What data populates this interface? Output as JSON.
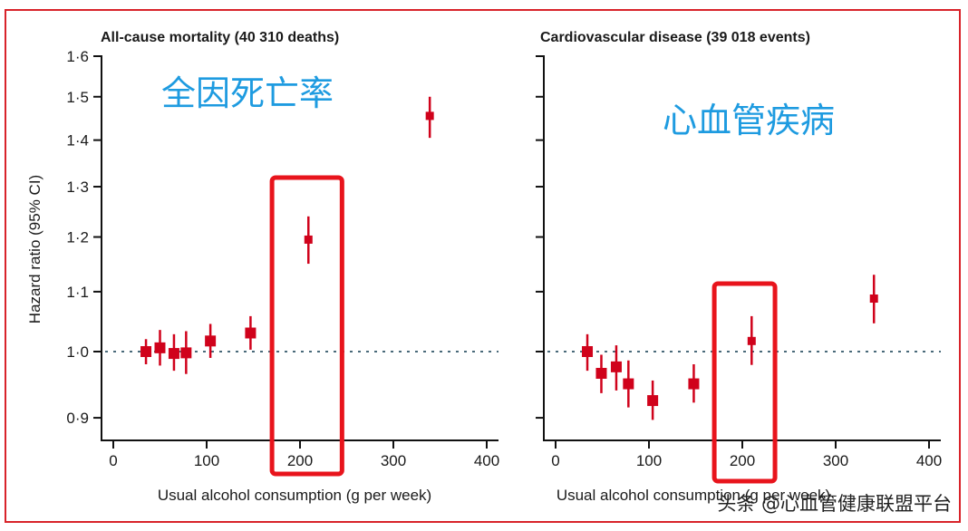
{
  "chart_data": [
    {
      "type": "scatter",
      "subtype": "forest/point-with-error-bars",
      "title": "All-cause mortality (40 310 deaths)",
      "annotation": "全因死亡率",
      "xlabel": "Usual alcohol consumption (g per week)",
      "ylabel": "Hazard ratio (95% CI)",
      "xlim": [
        0,
        400
      ],
      "ylim": [
        0.88,
        1.6
      ],
      "yscale": "log",
      "xticks": [
        "0",
        "100",
        "200",
        "300",
        "400"
      ],
      "yticks": [
        "0·9",
        "1·0",
        "1·1",
        "1·2",
        "1·3",
        "1·4",
        "1·5",
        "1·6"
      ],
      "reference_line": 1.0,
      "highlight_x_range": [
        170,
        245
      ],
      "points": [
        {
          "x": 35,
          "hr": 1.0,
          "lo": 0.98,
          "hi": 1.02
        },
        {
          "x": 50,
          "hr": 1.006,
          "lo": 0.978,
          "hi": 1.035
        },
        {
          "x": 65,
          "hr": 0.997,
          "lo": 0.97,
          "hi": 1.028
        },
        {
          "x": 78,
          "hr": 0.998,
          "lo": 0.965,
          "hi": 1.033
        },
        {
          "x": 104,
          "hr": 1.017,
          "lo": 0.99,
          "hi": 1.045
        },
        {
          "x": 147,
          "hr": 1.03,
          "lo": 1.003,
          "hi": 1.058
        },
        {
          "x": 209,
          "hr": 1.195,
          "lo": 1.15,
          "hi": 1.24
        },
        {
          "x": 339,
          "hr": 1.455,
          "lo": 1.405,
          "hi": 1.5
        }
      ]
    },
    {
      "type": "scatter",
      "subtype": "forest/point-with-error-bars",
      "title": "Cardiovascular disease (39 018 events)",
      "annotation": "心血管疾病",
      "xlabel": "Usual alcohol consumption (g per week)",
      "ylabel": "",
      "xlim": [
        0,
        400
      ],
      "ylim": [
        0.88,
        1.6
      ],
      "yscale": "log",
      "xticks": [
        "0",
        "100",
        "200",
        "300",
        "400"
      ],
      "yticks": [],
      "reference_line": 1.0,
      "highlight_x_range": [
        170,
        235
      ],
      "points": [
        {
          "x": 34,
          "hr": 1.0,
          "lo": 0.97,
          "hi": 1.028
        },
        {
          "x": 49,
          "hr": 0.966,
          "lo": 0.936,
          "hi": 0.995
        },
        {
          "x": 65,
          "hr": 0.976,
          "lo": 0.94,
          "hi": 1.01
        },
        {
          "x": 78,
          "hr": 0.95,
          "lo": 0.915,
          "hi": 0.986
        },
        {
          "x": 104,
          "hr": 0.925,
          "lo": 0.897,
          "hi": 0.955
        },
        {
          "x": 148,
          "hr": 0.95,
          "lo": 0.922,
          "hi": 0.98
        },
        {
          "x": 210,
          "hr": 1.017,
          "lo": 0.979,
          "hi": 1.058
        },
        {
          "x": 341,
          "hr": 1.088,
          "lo": 1.046,
          "hi": 1.13
        }
      ]
    }
  ],
  "watermark": "头条 @心血管健康联盟平台",
  "colors": {
    "marker": "#d0021b",
    "highlight": "#e8141c",
    "frame": "#d8232a",
    "reference_line": "#4a6a7a",
    "annotation": "#1e9be0"
  }
}
